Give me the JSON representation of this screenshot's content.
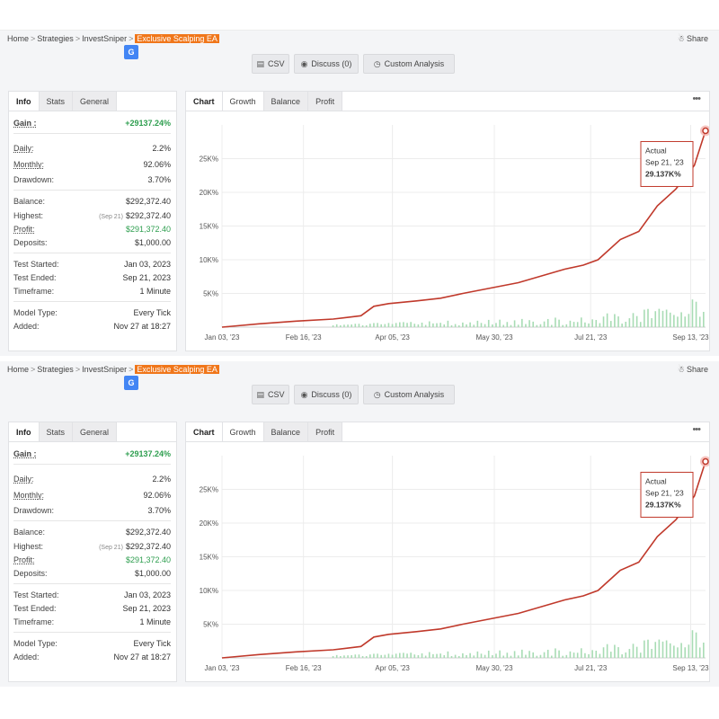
{
  "breadcrumb": {
    "items": [
      "Home",
      "Strategies",
      "InvestSniper"
    ],
    "current": "Exclusive Scalping EA",
    "separator": ">"
  },
  "share_label": "Share",
  "buttons": {
    "csv": "CSV",
    "discuss": "Discuss (0)",
    "custom": "Custom Analysis"
  },
  "info_tabs": [
    "Info",
    "Stats",
    "General"
  ],
  "chart_tabs": [
    "Chart",
    "Growth",
    "Balance",
    "Profit"
  ],
  "more_label": "•••",
  "info": {
    "gain_label": "Gain :",
    "gain_value": "+29137.24%",
    "daily_label": "Daily:",
    "daily_value": "2.2%",
    "monthly_label": "Monthly:",
    "monthly_value": "92.06%",
    "drawdown_label": "Drawdown:",
    "drawdown_value": "3.70%",
    "balance_label": "Balance:",
    "balance_value": "$292,372.40",
    "highest_label": "Highest:",
    "highest_note": "(Sep 21)",
    "highest_value": "$292,372.40",
    "profit_label": "Profit:",
    "profit_value": "$291,372.40",
    "deposits_label": "Deposits:",
    "deposits_value": "$1,000.00",
    "test_started_label": "Test Started:",
    "test_started_value": "Jan 03, 2023",
    "test_ended_label": "Test Ended:",
    "test_ended_value": "Sep 21, 2023",
    "timeframe_label": "Timeframe:",
    "timeframe_value": "1 Minute",
    "model_type_label": "Model Type:",
    "model_type_value": "Every Tick",
    "added_label": "Added:",
    "added_value": "Nov 27 at 18:27"
  },
  "colors": {
    "accent_orange": "#f0761a",
    "line_red": "#c0392b",
    "bar_green": "#a8dcb4",
    "gain_green": "#2e9e4f"
  },
  "chart_data": {
    "type": "line",
    "ytick_labels": [
      "5K%",
      "10K%",
      "15K%",
      "20K%",
      "25K%"
    ],
    "ytick_values": [
      5000,
      10000,
      15000,
      20000,
      25000
    ],
    "ylim": [
      0,
      30000
    ],
    "xtick_labels": [
      "Jan 03, '23",
      "Feb 16, '23",
      "Apr 05, '23",
      "May 30, '23",
      "Jul 21, '23",
      "Sep 13, '23"
    ],
    "xtick_days": [
      0,
      44,
      92,
      147,
      199,
      253
    ],
    "x_range_days": [
      0,
      261
    ],
    "series": [
      {
        "x_days": [
          0,
          20,
          40,
          60,
          75,
          82,
          90,
          105,
          118,
          130,
          145,
          160,
          175,
          185,
          195,
          203,
          215,
          225,
          235,
          245,
          255,
          261
        ],
        "values": [
          0,
          500,
          900,
          1200,
          1700,
          3100,
          3500,
          3900,
          4300,
          5000,
          5800,
          6600,
          7800,
          8600,
          9200,
          10000,
          13000,
          14200,
          18000,
          20500,
          24000,
          29137
        ]
      }
    ],
    "tooltip": {
      "title": "Actual",
      "date": "Sep 21, '23",
      "value": "29.137K%"
    },
    "grid": true
  }
}
